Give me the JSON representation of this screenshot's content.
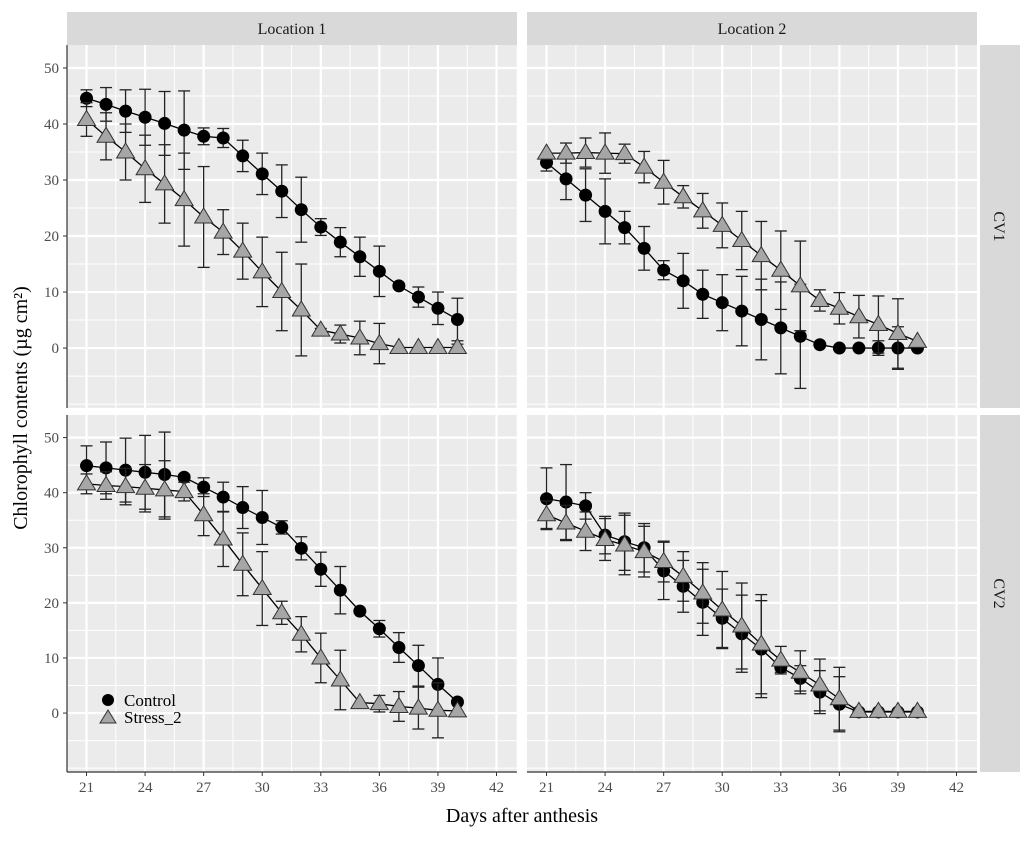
{
  "chart_data": {
    "type": "line",
    "xlabel": "Days after anthesis",
    "ylabel": "Chlorophyll contents (µg cm²)",
    "x_ticks": [
      21,
      24,
      27,
      30,
      33,
      36,
      39,
      42
    ],
    "y_ticks": [
      0,
      10,
      20,
      30,
      40,
      50
    ],
    "xlim": [
      20,
      43.05
    ],
    "ylim": [
      -10.7,
      54.1
    ],
    "grid": true,
    "legend_position": "bottom-left",
    "columns": [
      "Location 1",
      "Location 2"
    ],
    "rows": [
      "CV1",
      "CV2"
    ],
    "x": [
      21,
      22,
      23,
      24,
      25,
      26,
      27,
      28,
      29,
      30,
      31,
      32,
      33,
      34,
      35,
      36,
      37,
      38,
      39,
      40
    ],
    "series_styles": [
      {
        "name": "Control",
        "marker": "circle",
        "color": "#000000"
      },
      {
        "name": "Stress_2",
        "marker": "triangle",
        "color": "#a6a6a6"
      }
    ],
    "panels": [
      {
        "column": "Location 1",
        "row": "CV1",
        "series": [
          {
            "name": "Control",
            "values": [
              44.6,
              43.5,
              42.3,
              41.2,
              40.1,
              38.9,
              37.8,
              37.5,
              34.3,
              31.1,
              28.0,
              24.7,
              21.6,
              18.9,
              16.3,
              13.7,
              11.1,
              9.1,
              7.1,
              5.1
            ],
            "errors": [
              1.5,
              3,
              3.8,
              5,
              5.7,
              7,
              1.5,
              1.7,
              2.8,
              3.7,
              4.7,
              5.8,
              1.5,
              2.6,
              3.5,
              4.5,
              0.3,
              1.8,
              2.9,
              3.8
            ]
          },
          {
            "name": "Stress_2",
            "values": [
              40.8,
              37.8,
              35.0,
              32.0,
              29.3,
              26.5,
              23.4,
              20.7,
              17.3,
              13.6,
              10.1,
              6.8,
              3.2,
              2.5,
              1.8,
              0.8,
              0.1,
              0.1,
              0.1,
              0.1
            ],
            "errors": [
              3,
              4.2,
              5,
              6,
              7,
              8.3,
              9,
              4,
              5,
              6.2,
              7,
              8.2,
              0.3,
              1.6,
              3,
              3.6,
              0,
              0,
              0,
              0.6
            ]
          }
        ]
      },
      {
        "column": "Location 2",
        "row": "CV1",
        "series": [
          {
            "name": "Control",
            "values": [
              33.1,
              30.2,
              27.3,
              24.4,
              21.5,
              17.8,
              13.9,
              12.0,
              9.6,
              8.1,
              6.6,
              5.1,
              3.6,
              2.1,
              0.6,
              0,
              0,
              0,
              0,
              0
            ],
            "errors": [
              1.5,
              3.7,
              4.7,
              5.8,
              2.9,
              3.9,
              1.7,
              4.9,
              4.3,
              5,
              6.2,
              7.2,
              8.2,
              9.3,
              0,
              0,
              0,
              1.3,
              3.8,
              0
            ]
          },
          {
            "name": "Stress_2",
            "values": [
              34.8,
              34.8,
              34.9,
              34.8,
              34.7,
              32.3,
              29.6,
              27.0,
              24.5,
              21.9,
              19.2,
              16.5,
              13.9,
              11.1,
              8.5,
              7.1,
              5.6,
              4.2,
              2.6,
              1.2
            ],
            "errors": [
              0,
              1.8,
              2.6,
              3.6,
              1.7,
              2.8,
              3.9,
              2,
              3.1,
              4,
              5.2,
              6.1,
              7,
              8,
              1.9,
              2.8,
              3.8,
              5.1,
              6.2,
              0
            ]
          }
        ]
      },
      {
        "column": "Location 1",
        "row": "CV2",
        "series": [
          {
            "name": "Control",
            "values": [
              44.9,
              44.5,
              44.1,
              43.7,
              43.3,
              42.8,
              41.0,
              39.2,
              37.3,
              35.5,
              33.7,
              29.9,
              26.1,
              22.3,
              18.5,
              15.3,
              11.9,
              8.6,
              5.2,
              2.0
            ],
            "errors": [
              3.6,
              4.7,
              5.8,
              6.7,
              7.7,
              0.5,
              1.7,
              2.7,
              3.8,
              4.9,
              1.2,
              2.1,
              3.1,
              4.3,
              0.3,
              1.5,
              2.7,
              3.7,
              4.8,
              0
            ]
          },
          {
            "name": "Stress_2",
            "values": [
              41.6,
              41.3,
              41.1,
              40.8,
              40.5,
              40.2,
              36.0,
              31.6,
              27.0,
              22.6,
              18.2,
              14.3,
              10.0,
              6.0,
              1.9,
              1.7,
              1.2,
              0.9,
              0.5,
              0.4
            ],
            "errors": [
              1.8,
              2.5,
              3.3,
              4.3,
              5.3,
              1.7,
              3.8,
              5,
              5.7,
              6.7,
              2.1,
              3.2,
              4.5,
              5.4,
              0,
              1.5,
              2.7,
              3.8,
              5,
              0
            ]
          }
        ]
      },
      {
        "column": "Location 2",
        "row": "CV2",
        "series": [
          {
            "name": "Control",
            "values": [
              38.9,
              38.3,
              37.6,
              32.3,
              31.1,
              30.0,
              25.8,
              23.0,
              20.1,
              17.2,
              14.4,
              11.6,
              8.3,
              6.3,
              3.8,
              1.6,
              0.2,
              0.2,
              0.2,
              0.2
            ],
            "errors": [
              5.6,
              6.8,
              2.4,
              3.4,
              5.2,
              4.4,
              5.2,
              4.7,
              6,
              5.3,
              7,
              8.8,
              0.9,
              2.3,
              3.9,
              5,
              0,
              0,
              0,
              0
            ]
          },
          {
            "name": "Stress_2",
            "values": [
              36.0,
              34.5,
              33.0,
              31.5,
              30.5,
              29.3,
              27.5,
              24.8,
              21.8,
              18.7,
              15.8,
              12.5,
              9.6,
              7.4,
              5.1,
              2.6,
              0.3,
              0.3,
              0.3,
              0.3
            ],
            "errors": [
              2.5,
              3.2,
              3.5,
              3.8,
              5.4,
              4.6,
              3.7,
              4.5,
              5.5,
              7,
              7.8,
              9,
              2.5,
              3.9,
              4.7,
              5.7,
              0,
              0,
              0,
              0
            ]
          }
        ]
      }
    ]
  }
}
